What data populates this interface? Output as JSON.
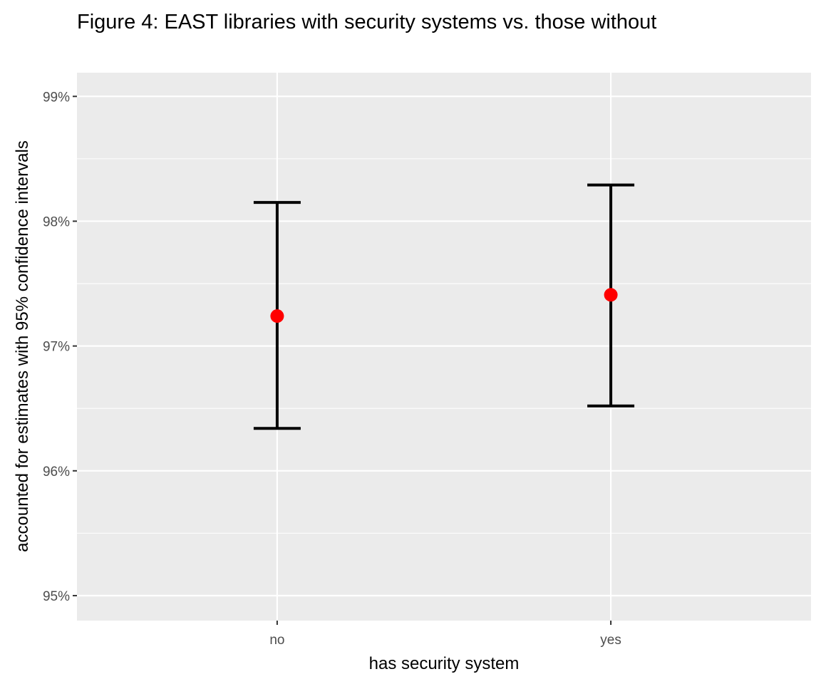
{
  "chart_data": {
    "type": "errorbar",
    "title": "Figure 4: EAST libraries with security systems vs. those without",
    "xlabel": "has security system",
    "ylabel": "accounted for estimates with 95% confidence intervals",
    "categories": [
      "no",
      "yes"
    ],
    "series": [
      {
        "estimates": [
          97.24,
          97.41
        ],
        "lower": [
          96.34,
          96.52
        ],
        "upper": [
          98.15,
          98.29
        ],
        "point_color": "#ff0000",
        "errorbar_color": "#000000"
      }
    ],
    "y_ticks": [
      95,
      96,
      97,
      98,
      99
    ],
    "y_tick_labels": [
      "95%",
      "96%",
      "97%",
      "98%",
      "99%"
    ],
    "ylim": [
      94.8,
      99.19
    ],
    "grid": true,
    "panel_background": "#ebebeb",
    "gridline_color": "#ffffff"
  }
}
